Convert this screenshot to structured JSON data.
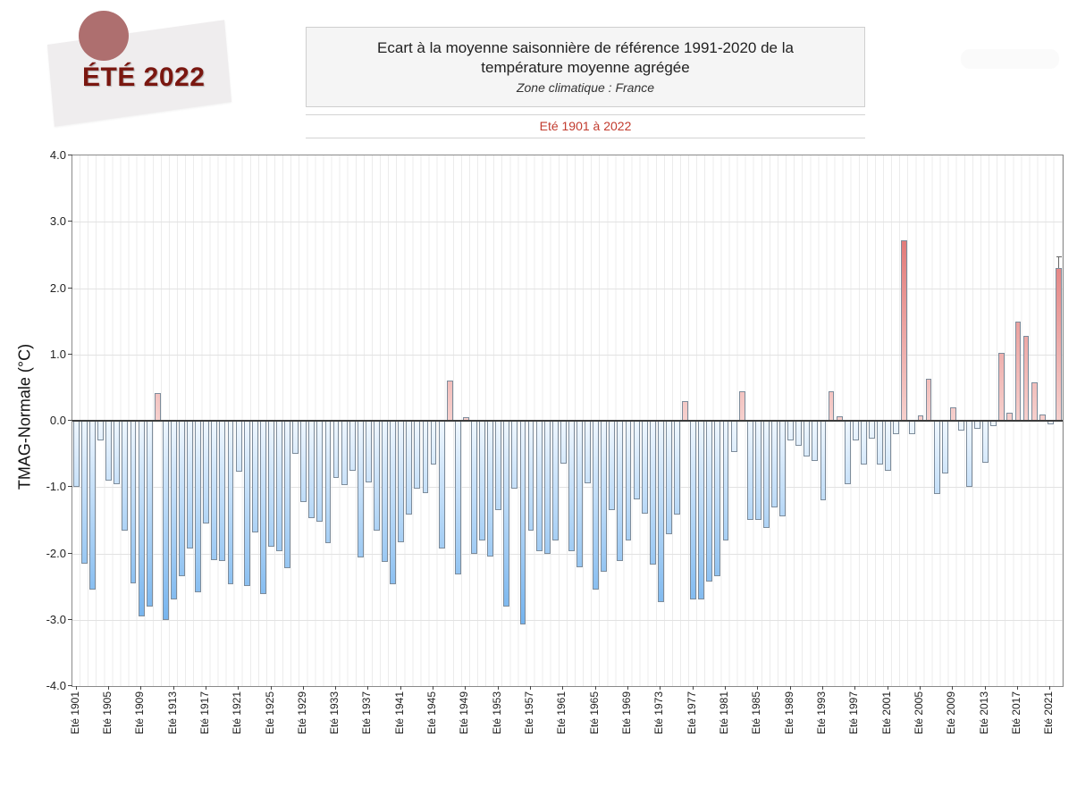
{
  "badge": {
    "label": "ÉTÉ 2022"
  },
  "header": {
    "title_line1": "Ecart à la moyenne saisonnière  de référence 1991-2020  de la",
    "title_line2": "température moyenne  agrégée",
    "subtitle": "Zone climatique : France",
    "period": "Eté 1901 à 2022"
  },
  "chart_data": {
    "type": "bar",
    "title": "Ecart à la moyenne saisonnière de référence 1991-2020 de la température moyenne agrégée",
    "subtitle": "Zone climatique : France",
    "period_label": "Eté 1901 à 2022",
    "ylabel": "TMAG-Normale (°C)",
    "xlabel": "",
    "ylim": [
      -4.0,
      4.0
    ],
    "grid": true,
    "legend": "none",
    "ytick_labels": [
      "4.0",
      "3.0",
      "2.0",
      "1.0",
      "0.0",
      "-1.0",
      "-2.0",
      "-3.0",
      "-4.0"
    ],
    "xtick_labels": [
      "Eté 1901",
      "Eté 1905",
      "Eté 1909",
      "Eté 1913",
      "Eté 1917",
      "Eté 1921",
      "Eté 1925",
      "Eté 1929",
      "Eté 1933",
      "Eté 1937",
      "Eté 1941",
      "Eté 1945",
      "Eté 1949",
      "Eté 1953",
      "Eté 1957",
      "Eté 1961",
      "Eté 1965",
      "Eté 1969",
      "Eté 1973",
      "Eté 1977",
      "Eté 1981",
      "Eté 1985",
      "Eté 1989",
      "Eté 1993",
      "Eté 1997",
      "Eté 2001",
      "Eté 2005",
      "Eté 2009",
      "Eté 2013",
      "Eté 2017",
      "Eté 2021"
    ],
    "xtick_interval": 4,
    "years": [
      1901,
      1902,
      1903,
      1904,
      1905,
      1906,
      1907,
      1908,
      1909,
      1910,
      1911,
      1912,
      1913,
      1914,
      1915,
      1916,
      1917,
      1918,
      1919,
      1920,
      1921,
      1922,
      1923,
      1924,
      1925,
      1926,
      1927,
      1928,
      1929,
      1930,
      1931,
      1932,
      1933,
      1934,
      1935,
      1936,
      1937,
      1938,
      1939,
      1940,
      1941,
      1942,
      1943,
      1944,
      1945,
      1946,
      1947,
      1948,
      1949,
      1950,
      1951,
      1952,
      1953,
      1954,
      1955,
      1956,
      1957,
      1958,
      1959,
      1960,
      1961,
      1962,
      1963,
      1964,
      1965,
      1966,
      1967,
      1968,
      1969,
      1970,
      1971,
      1972,
      1973,
      1974,
      1975,
      1976,
      1977,
      1978,
      1979,
      1980,
      1981,
      1982,
      1983,
      1984,
      1985,
      1986,
      1987,
      1988,
      1989,
      1990,
      1991,
      1992,
      1993,
      1994,
      1995,
      1996,
      1997,
      1998,
      1999,
      2000,
      2001,
      2002,
      2003,
      2004,
      2005,
      2006,
      2007,
      2008,
      2009,
      2010,
      2011,
      2012,
      2013,
      2014,
      2015,
      2016,
      2017,
      2018,
      2019,
      2020,
      2021,
      2022
    ],
    "values": [
      -1.0,
      -2.15,
      -2.55,
      -0.3,
      -0.9,
      -0.95,
      -1.65,
      -2.45,
      -2.95,
      -2.8,
      0.42,
      -3.0,
      -2.7,
      -2.35,
      -1.93,
      -2.58,
      -1.55,
      -2.1,
      -2.12,
      -2.47,
      -0.77,
      -2.49,
      -1.68,
      -2.61,
      -1.9,
      -1.97,
      -2.22,
      -0.5,
      -1.22,
      -1.47,
      -1.52,
      -1.84,
      -0.86,
      -0.97,
      -0.75,
      -2.06,
      -0.93,
      -1.66,
      -2.13,
      -2.47,
      -1.83,
      -1.42,
      -1.02,
      -1.09,
      -0.66,
      -1.92,
      0.6,
      -2.31,
      0.05,
      -2.01,
      -1.8,
      -2.05,
      -1.35,
      -2.8,
      -1.02,
      -3.07,
      -1.66,
      -1.96,
      -2.01,
      -1.8,
      -0.65,
      -1.96,
      -2.21,
      -0.94,
      -2.55,
      -2.28,
      -1.35,
      -2.12,
      -1.8,
      -1.19,
      -1.4,
      -2.17,
      -2.73,
      -1.71,
      -1.42,
      0.29,
      -2.69,
      -2.7,
      -2.42,
      -2.34,
      -1.8,
      -0.47,
      0.44,
      -1.49,
      -1.49,
      -1.62,
      -1.31,
      -1.44,
      -0.29,
      -0.38,
      -0.54,
      -0.6,
      -1.2,
      0.44,
      0.07,
      -0.95,
      -0.3,
      -0.66,
      -0.27,
      -0.66,
      -0.76,
      -0.2,
      2.72,
      -0.2,
      0.08,
      0.63,
      -1.1,
      -0.8,
      0.2,
      -0.15,
      -1.0,
      -0.12,
      -0.63,
      -0.08,
      1.03,
      0.12,
      1.5,
      1.28,
      0.58,
      0.1,
      -0.05,
      2.3
    ],
    "annotation": {
      "year": 2022,
      "marker": "error-tick-above-bar"
    },
    "colors": {
      "bar_blue_light": "#f0f7fe",
      "bar_blue_dark": "#4d9ee9",
      "bar_red_light": "#f6d0cd",
      "bar_red_dark": "#d85252",
      "bar_border": "#7d8c9b",
      "period_text": "#c23b2e",
      "badge_text": "#7a1710",
      "badge_bg": "#efedee",
      "badge_circle": "#ae6f6f",
      "zero_line": "#3c3c3c"
    }
  }
}
